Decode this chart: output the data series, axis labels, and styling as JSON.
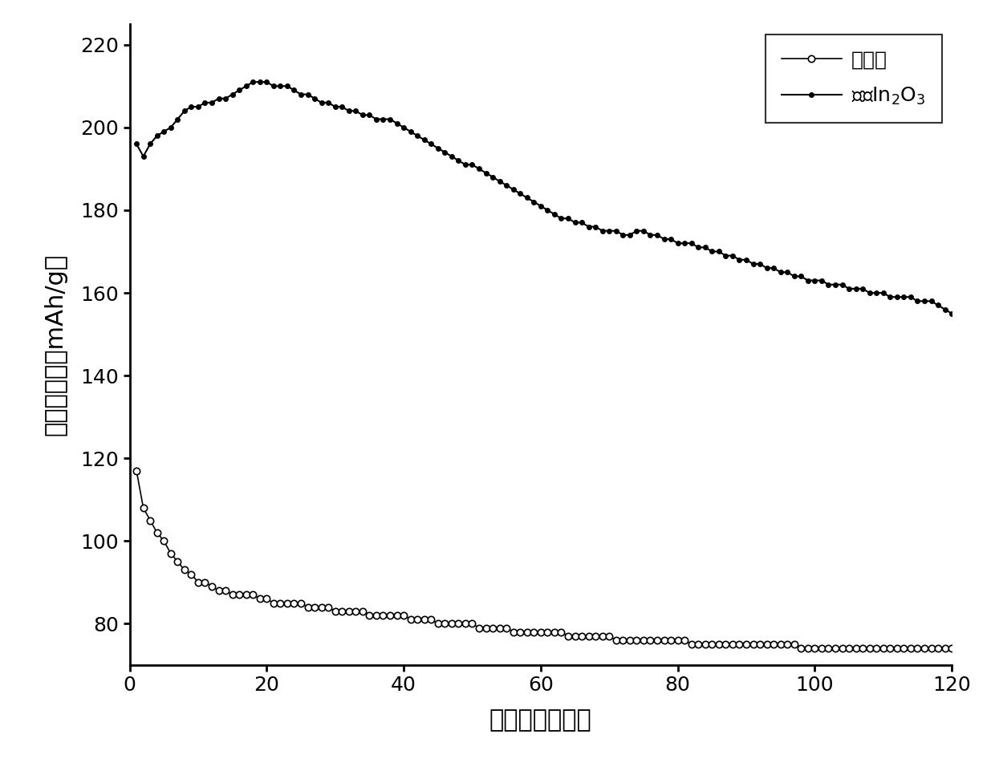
{
  "title": "",
  "xlabel": "循环圈数（圈）",
  "ylabel": "放电比容量（mAh/g）",
  "xlim": [
    0,
    120
  ],
  "ylim": [
    70,
    225
  ],
  "xticks": [
    0,
    20,
    40,
    60,
    80,
    100,
    120
  ],
  "yticks": [
    80,
    100,
    120,
    140,
    160,
    180,
    200,
    220
  ],
  "legend1": "未包覆",
  "legend2": "包覆In$_2$O$_3$",
  "background_color": "#ffffff",
  "series1_x": [
    1,
    2,
    3,
    4,
    5,
    6,
    7,
    8,
    9,
    10,
    11,
    12,
    13,
    14,
    15,
    16,
    17,
    18,
    19,
    20,
    21,
    22,
    23,
    24,
    25,
    26,
    27,
    28,
    29,
    30,
    31,
    32,
    33,
    34,
    35,
    36,
    37,
    38,
    39,
    40,
    41,
    42,
    43,
    44,
    45,
    46,
    47,
    48,
    49,
    50,
    51,
    52,
    53,
    54,
    55,
    56,
    57,
    58,
    59,
    60,
    61,
    62,
    63,
    64,
    65,
    66,
    67,
    68,
    69,
    70,
    71,
    72,
    73,
    74,
    75,
    76,
    77,
    78,
    79,
    80,
    81,
    82,
    83,
    84,
    85,
    86,
    87,
    88,
    89,
    90,
    91,
    92,
    93,
    94,
    95,
    96,
    97,
    98,
    99,
    100,
    101,
    102,
    103,
    104,
    105,
    106,
    107,
    108,
    109,
    110,
    111,
    112,
    113,
    114,
    115,
    116,
    117,
    118,
    119,
    120
  ],
  "series1_y": [
    117,
    108,
    105,
    102,
    100,
    97,
    95,
    93,
    92,
    90,
    90,
    89,
    88,
    88,
    87,
    87,
    87,
    87,
    86,
    86,
    85,
    85,
    85,
    85,
    85,
    84,
    84,
    84,
    84,
    83,
    83,
    83,
    83,
    83,
    82,
    82,
    82,
    82,
    82,
    82,
    81,
    81,
    81,
    81,
    80,
    80,
    80,
    80,
    80,
    80,
    79,
    79,
    79,
    79,
    79,
    78,
    78,
    78,
    78,
    78,
    78,
    78,
    78,
    77,
    77,
    77,
    77,
    77,
    77,
    77,
    76,
    76,
    76,
    76,
    76,
    76,
    76,
    76,
    76,
    76,
    76,
    75,
    75,
    75,
    75,
    75,
    75,
    75,
    75,
    75,
    75,
    75,
    75,
    75,
    75,
    75,
    75,
    74,
    74,
    74,
    74,
    74,
    74,
    74,
    74,
    74,
    74,
    74,
    74,
    74,
    74,
    74,
    74,
    74,
    74,
    74,
    74,
    74,
    74,
    74
  ],
  "series2_x": [
    1,
    2,
    3,
    4,
    5,
    6,
    7,
    8,
    9,
    10,
    11,
    12,
    13,
    14,
    15,
    16,
    17,
    18,
    19,
    20,
    21,
    22,
    23,
    24,
    25,
    26,
    27,
    28,
    29,
    30,
    31,
    32,
    33,
    34,
    35,
    36,
    37,
    38,
    39,
    40,
    41,
    42,
    43,
    44,
    45,
    46,
    47,
    48,
    49,
    50,
    51,
    52,
    53,
    54,
    55,
    56,
    57,
    58,
    59,
    60,
    61,
    62,
    63,
    64,
    65,
    66,
    67,
    68,
    69,
    70,
    71,
    72,
    73,
    74,
    75,
    76,
    77,
    78,
    79,
    80,
    81,
    82,
    83,
    84,
    85,
    86,
    87,
    88,
    89,
    90,
    91,
    92,
    93,
    94,
    95,
    96,
    97,
    98,
    99,
    100,
    101,
    102,
    103,
    104,
    105,
    106,
    107,
    108,
    109,
    110,
    111,
    112,
    113,
    114,
    115,
    116,
    117,
    118,
    119,
    120
  ],
  "series2_y": [
    196,
    193,
    196,
    198,
    199,
    200,
    202,
    204,
    205,
    205,
    206,
    206,
    207,
    207,
    208,
    209,
    210,
    211,
    211,
    211,
    210,
    210,
    210,
    209,
    208,
    208,
    207,
    206,
    206,
    205,
    205,
    204,
    204,
    203,
    203,
    202,
    202,
    202,
    201,
    200,
    199,
    198,
    197,
    196,
    195,
    194,
    193,
    192,
    191,
    191,
    190,
    189,
    188,
    187,
    186,
    185,
    184,
    183,
    182,
    181,
    180,
    179,
    178,
    178,
    177,
    177,
    176,
    176,
    175,
    175,
    175,
    174,
    174,
    175,
    175,
    174,
    174,
    173,
    173,
    172,
    172,
    172,
    171,
    171,
    170,
    170,
    169,
    169,
    168,
    168,
    167,
    167,
    166,
    166,
    165,
    165,
    164,
    164,
    163,
    163,
    163,
    162,
    162,
    162,
    161,
    161,
    161,
    160,
    160,
    160,
    159,
    159,
    159,
    159,
    158,
    158,
    158,
    157,
    156,
    155
  ]
}
